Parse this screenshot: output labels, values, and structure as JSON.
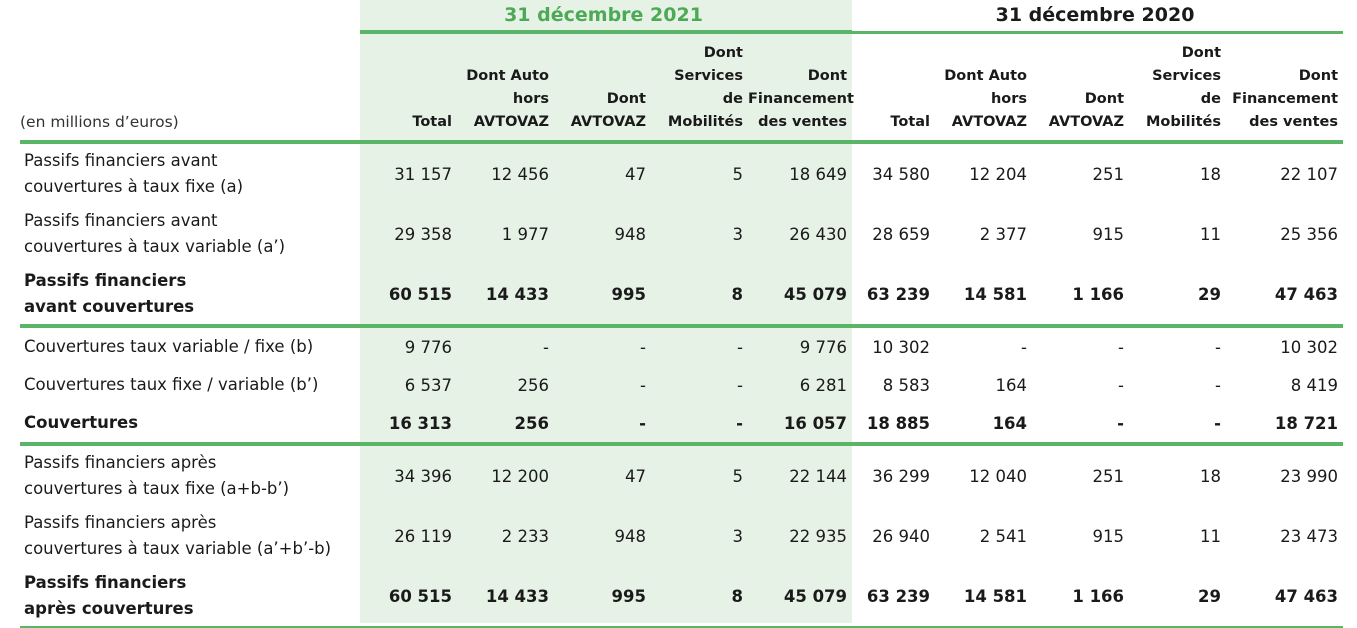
{
  "periods": {
    "p2021": "31 décembre 2021",
    "p2020": "31 décembre 2020"
  },
  "unit_label": "(en millions d’euros)",
  "columns": {
    "total": "Total",
    "auto": [
      "Dont Auto",
      "hors",
      "AVTOVAZ"
    ],
    "avtovaz": [
      "Dont",
      "AVTOVAZ"
    ],
    "mobility": [
      "Dont",
      "Services",
      "de",
      "Mobilités"
    ],
    "financing": [
      "Dont",
      "Financement",
      "des ventes"
    ]
  },
  "rows": [
    {
      "label": [
        "Passifs financiers avant",
        "couvertures à taux fixe (a)"
      ],
      "values": [
        "31 157",
        "12 456",
        "47",
        "5",
        "18 649",
        "34 580",
        "12 204",
        "251",
        "18",
        "22 107"
      ]
    },
    {
      "label": [
        "Passifs financiers avant",
        "couvertures à taux variable (a’)"
      ],
      "values": [
        "29 358",
        "1 977",
        "948",
        "3",
        "26 430",
        "28 659",
        "2 377",
        "915",
        "11",
        "25 356"
      ]
    },
    {
      "label": [
        "Passifs financiers",
        "avant couvertures"
      ],
      "values": [
        "60 515",
        "14 433",
        "995",
        "8",
        "45 079",
        "63 239",
        "14 581",
        "1 166",
        "29",
        "47 463"
      ]
    },
    {
      "label": [
        "Couvertures taux variable / fixe (b)"
      ],
      "values": [
        "9 776",
        "-",
        "-",
        "-",
        "9 776",
        "10 302",
        "-",
        "-",
        "-",
        "10 302"
      ]
    },
    {
      "label": [
        "Couvertures taux fixe / variable (b’)"
      ],
      "values": [
        "6 537",
        "256",
        "-",
        "-",
        "6 281",
        "8 583",
        "164",
        "-",
        "-",
        "8 419"
      ]
    },
    {
      "label": [
        "Couvertures"
      ],
      "values": [
        "16 313",
        "256",
        "-",
        "-",
        "16 057",
        "18 885",
        "164",
        "-",
        "-",
        "18 721"
      ]
    },
    {
      "label": [
        "Passifs financiers après",
        "couvertures à taux fixe (a+b-b’)"
      ],
      "values": [
        "34 396",
        "12 200",
        "47",
        "5",
        "22 144",
        "36 299",
        "12 040",
        "251",
        "18",
        "23 990"
      ]
    },
    {
      "label": [
        "Passifs financiers après",
        "couvertures à taux variable (a’+b’-b)"
      ],
      "values": [
        "26 119",
        "2 233",
        "948",
        "3",
        "22 935",
        "26 940",
        "2 541",
        "915",
        "11",
        "23 473"
      ]
    },
    {
      "label": [
        "Passifs financiers",
        "après couvertures"
      ],
      "values": [
        "60 515",
        "14 433",
        "995",
        "8",
        "45 079",
        "63 239",
        "14 581",
        "1 166",
        "29",
        "47 463"
      ]
    }
  ]
}
